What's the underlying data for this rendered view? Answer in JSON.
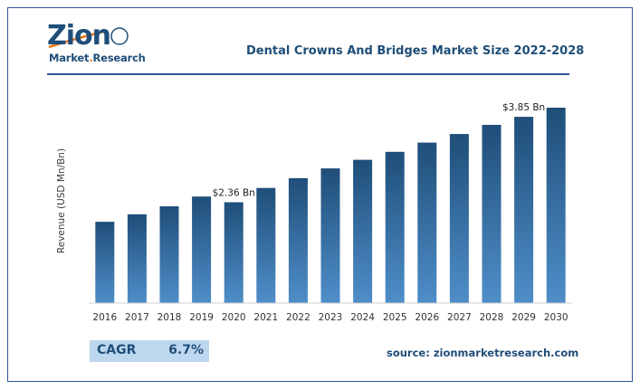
{
  "logo": {
    "name": "Zion",
    "sub_main": "Market",
    "sub_dot": ".",
    "sub_accent": "Research"
  },
  "title": "Dental Crowns And Bridges Market Size 2022-2028",
  "footer": {
    "cagr_label": "CAGR",
    "cagr_value": "6.7%",
    "source": "source: zionmarketresearch.com"
  },
  "colors": {
    "bar_dark": "#1f4e79",
    "bar_light": "#4f8ec9",
    "brand": "#1f4e79",
    "accent": "#e8781a",
    "cagr_bg": "#bdd7ee"
  },
  "chart_data": {
    "type": "bar",
    "title": "Dental Crowns And Bridges Market Size 2022-2028",
    "xlabel": "",
    "ylabel": "Revenue (USD Mn/Bn)",
    "categories": [
      "2016",
      "2017",
      "2018",
      "2019",
      "2020",
      "2021",
      "2022",
      "2023",
      "2024",
      "2025",
      "2026",
      "2027",
      "2028",
      "2029",
      "2030"
    ],
    "values": [
      2.02,
      2.15,
      2.29,
      2.46,
      2.36,
      2.61,
      2.78,
      2.95,
      3.1,
      3.24,
      3.4,
      3.55,
      3.71,
      3.85,
      4.01
    ],
    "annotations": [
      {
        "category": "2020",
        "label": "$2.36 Bn"
      },
      {
        "category": "2029",
        "label": "$3.85 Bn"
      }
    ],
    "ylim": [
      0.6,
      4.01
    ],
    "grid": false,
    "legend": "none"
  }
}
